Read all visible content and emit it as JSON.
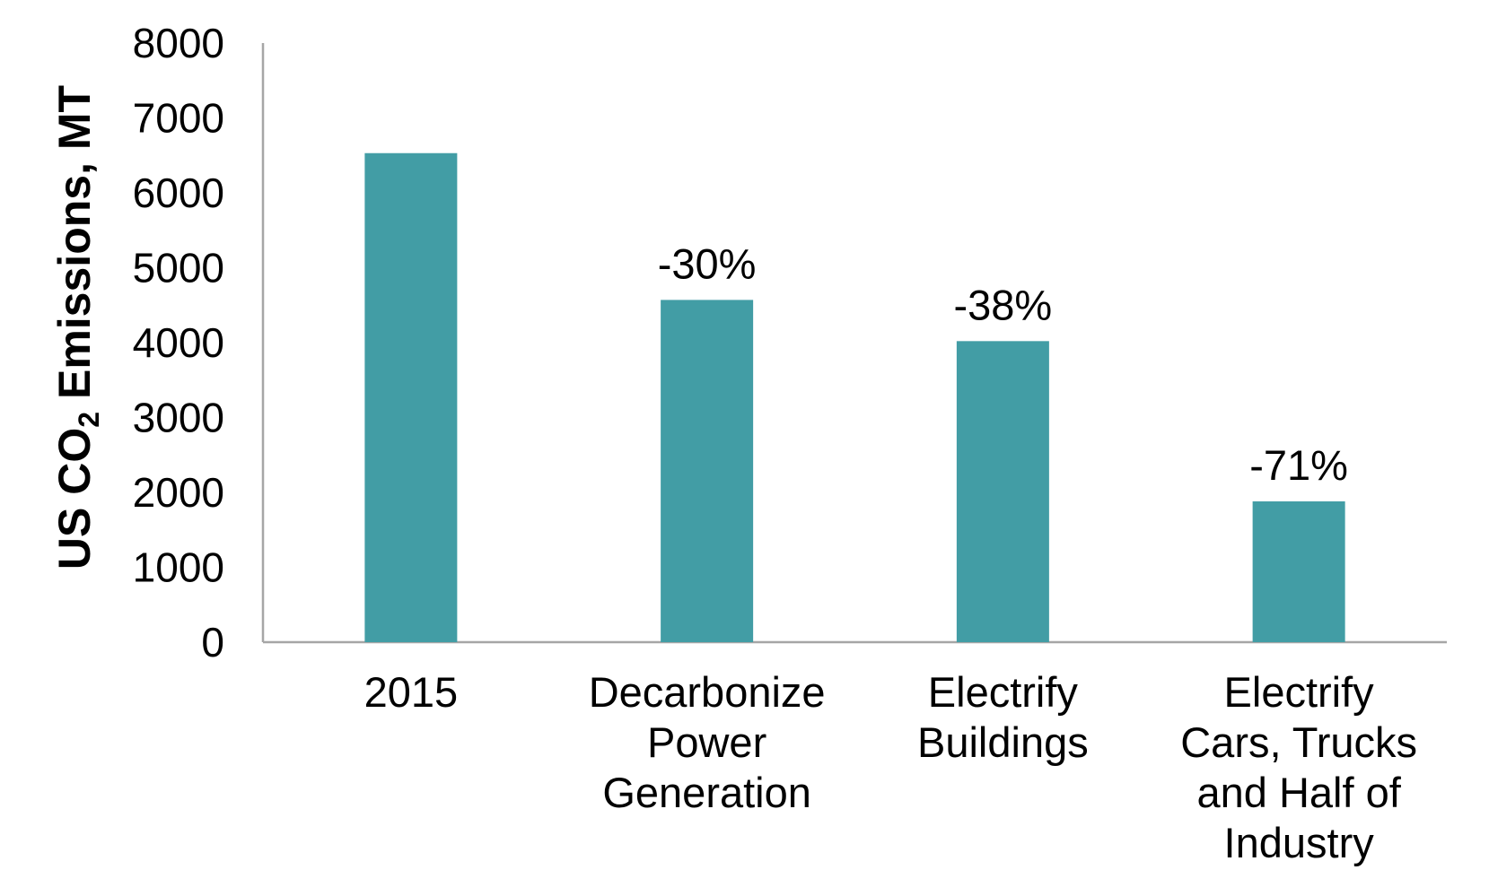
{
  "chart_data": {
    "type": "bar",
    "categories": [
      [
        "2015"
      ],
      [
        "Decarbonize",
        "Power",
        "Generation"
      ],
      [
        "Electrify",
        "Buildings"
      ],
      [
        "Electrify",
        "Cars, Trucks",
        "and Half of",
        "Industry"
      ]
    ],
    "values": [
      6530,
      4570,
      4020,
      1880
    ],
    "data_labels": [
      "",
      "-30%",
      "-38%",
      "-71%"
    ],
    "ylabel": {
      "prefix": "US CO",
      "subscript": "2",
      "suffix": " Emissions, MT"
    },
    "ylim": [
      0,
      8000
    ],
    "yticks": [
      "0",
      "1000",
      "2000",
      "3000",
      "4000",
      "5000",
      "6000",
      "7000",
      "8000"
    ],
    "grid": false,
    "legend": "none",
    "colors": {
      "bar": "#429da5",
      "axis": "#a6a6a6",
      "text": "#000000"
    }
  }
}
